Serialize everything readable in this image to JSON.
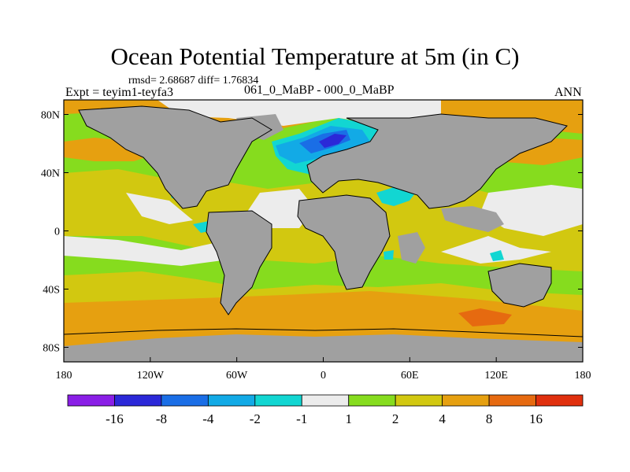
{
  "header": {
    "title": "Ocean Potential Temperature at 5m (in C)",
    "stats": "rmsd= 2.68687 diff= 1.76834",
    "experiment": "Expt = teyim1-teyfa3",
    "period": "061_0_MaBP - 000_0_MaBP",
    "season": "ANN"
  },
  "axes": {
    "x_ticks": [
      "180",
      "120W",
      "60W",
      "0",
      "60E",
      "120E",
      "180"
    ],
    "y_ticks": [
      "80N",
      "40N",
      "0",
      "40S",
      "80S"
    ]
  },
  "colorbar": {
    "labels": [
      "-16",
      "-8",
      "-4",
      "-2",
      "-1",
      "1",
      "2",
      "4",
      "8",
      "16"
    ],
    "colors": [
      "#8a1ee6",
      "#2b28d8",
      "#1a6ee6",
      "#12aae6",
      "#12d6d2",
      "#ececec",
      "#86dc1e",
      "#d2c810",
      "#e6a010",
      "#e66a10",
      "#e0300e"
    ]
  },
  "map_colors": {
    "land": "#a0a0a0",
    "ocean_warm": "#e6a010",
    "ocean_mild": "#d2c810",
    "ocean_slight": "#86dc1e",
    "ocean_neutral": "#ececec",
    "ocean_cool": "#12d6d2",
    "ocean_cold": "#12aae6",
    "ocean_colder": "#1a6ee6",
    "ocean_coldest": "#2b28d8",
    "ocean_hot": "#e66a10"
  }
}
